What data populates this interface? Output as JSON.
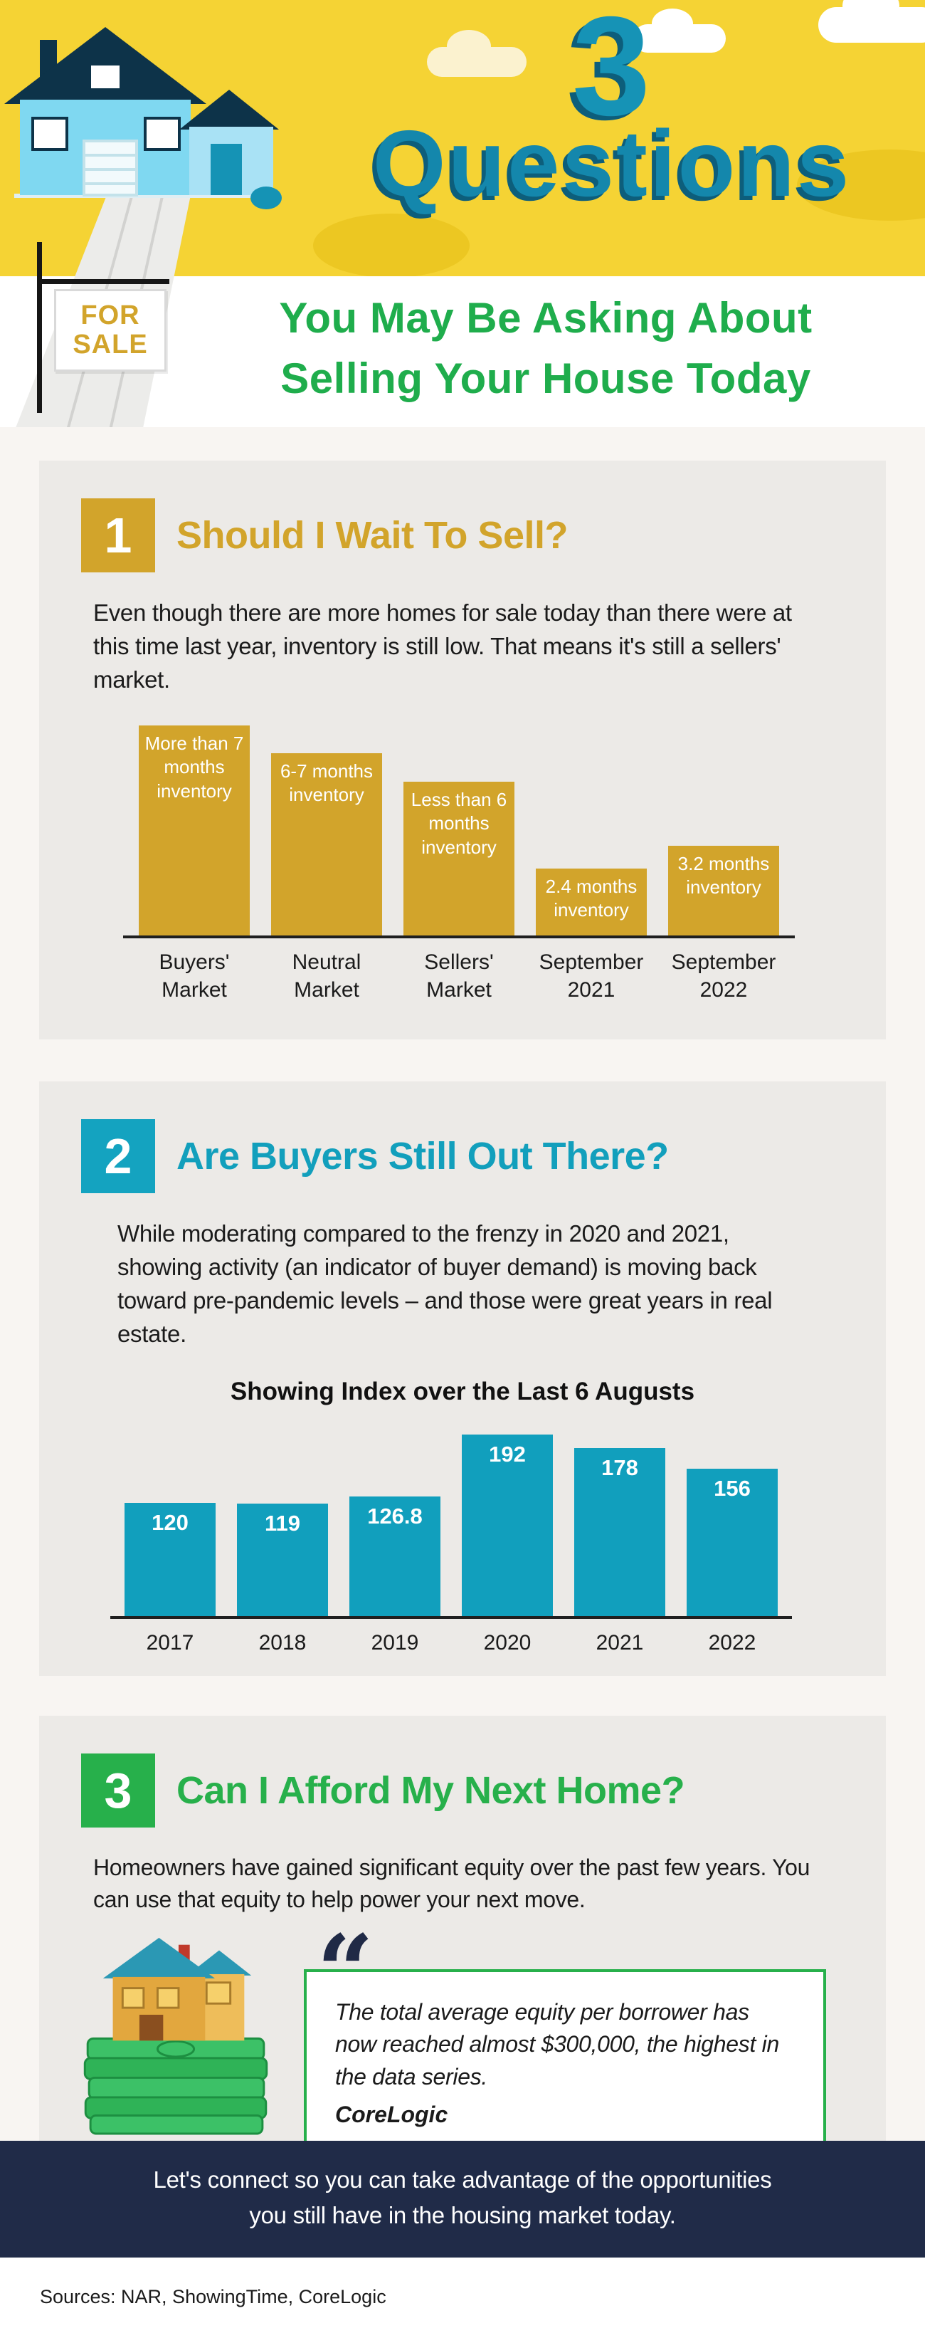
{
  "header": {
    "big_number": "3",
    "title": "Questions",
    "subtitle_line1": "You May Be Asking About",
    "subtitle_line2": "Selling Your House Today",
    "for_sale": {
      "line1": "FOR",
      "line2": "SALE"
    },
    "colors": {
      "banner_yellow": "#f5d334",
      "title_teal": "#1487ac",
      "subtitle_green": "#1fad4c"
    }
  },
  "sections": [
    {
      "number": "1",
      "heading": "Should I Wait To Sell?",
      "body": "Even though there are more homes for sale today than there were at this time last year, inventory is still low. That means it's still a sellers' market.",
      "accent_color": "#d2a42b"
    },
    {
      "number": "2",
      "heading": "Are Buyers Still Out There?",
      "body": "While moderating compared to the frenzy in 2020 and 2021, showing activity (an indicator of buyer demand) is moving back toward pre-pandemic levels – and those were great years in real estate.",
      "accent_color": "#129fbc"
    },
    {
      "number": "3",
      "heading": "Can I Afford My Next Home?",
      "body": "Homeowners have gained significant equity over the past few years. You can use that equity to help power your next move.",
      "accent_color": "#27b04b",
      "quote": {
        "text": "The total average equity per borrower has now reached almost $300,000, the highest in the data series.",
        "attribution": "CoreLogic"
      }
    }
  ],
  "chart_data": [
    {
      "type": "bar",
      "title": "",
      "categories": [
        "Buyers' Market",
        "Neutral Market",
        "Sellers' Market",
        "September 2021",
        "September 2022"
      ],
      "bar_labels": [
        "More than 7 months inventory",
        "6-7 months inventory",
        "Less than 6 months inventory",
        "2.4 months inventory",
        "3.2 months inventory"
      ],
      "values": [
        7.5,
        6.5,
        5.5,
        2.4,
        3.2
      ],
      "unit": "months of inventory",
      "ylim": [
        0,
        7.5
      ],
      "bar_color": "#d2a42b",
      "grid": false,
      "legend": "none"
    },
    {
      "type": "bar",
      "title": "Showing Index over the Last 6 Augusts",
      "categories": [
        "2017",
        "2018",
        "2019",
        "2020",
        "2021",
        "2022"
      ],
      "values": [
        120,
        119,
        126.8,
        192,
        178,
        156
      ],
      "ylim": [
        0,
        210
      ],
      "bar_color": "#119fbd",
      "grid": false,
      "legend": "none"
    }
  ],
  "footer": {
    "line1": "Let's connect so you can take advantage of the opportunities",
    "line2": "you still have in the housing market today.",
    "background": "#202b48"
  },
  "sources": "Sources: NAR, ShowingTime, CoreLogic"
}
